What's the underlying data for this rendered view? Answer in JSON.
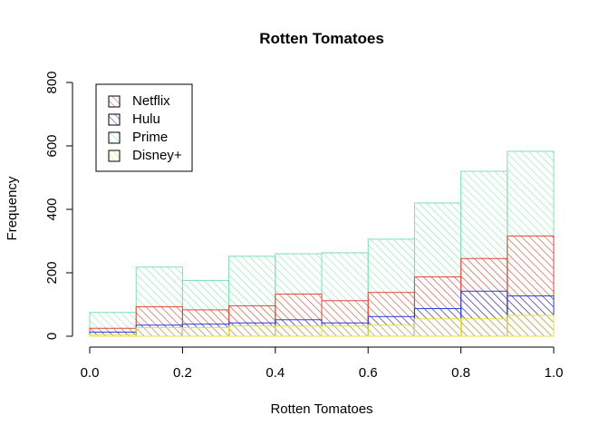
{
  "chart_data": {
    "type": "bar",
    "title": "Rotten Tomatoes",
    "xlabel": "Rotten Tomatoes",
    "ylabel": "Frequency",
    "xlim": [
      0,
      1
    ],
    "ylim": [
      0,
      800
    ],
    "x_ticks": [
      "0.0",
      "0.2",
      "0.4",
      "0.6",
      "0.8",
      "1.0"
    ],
    "y_ticks": [
      "0",
      "200",
      "400",
      "600",
      "800"
    ],
    "bins": [
      [
        0.0,
        0.1
      ],
      [
        0.1,
        0.2
      ],
      [
        0.2,
        0.3
      ],
      [
        0.3,
        0.4
      ],
      [
        0.4,
        0.5
      ],
      [
        0.5,
        0.6
      ],
      [
        0.6,
        0.7
      ],
      [
        0.7,
        0.8
      ],
      [
        0.8,
        0.9
      ],
      [
        0.9,
        1.0
      ]
    ],
    "legend_position": "top-left",
    "grid": false,
    "series": [
      {
        "name": "Prime",
        "color": "#7fdfb0",
        "values": [
          75,
          218,
          176,
          252,
          260,
          263,
          306,
          420,
          520,
          583
        ]
      },
      {
        "name": "Netflix",
        "color": "#e0463c",
        "values": [
          25,
          93,
          83,
          96,
          133,
          112,
          138,
          187,
          245,
          316
        ]
      },
      {
        "name": "Hulu",
        "color": "#2c3dd6",
        "values": [
          13,
          35,
          38,
          42,
          52,
          42,
          62,
          87,
          142,
          127
        ]
      },
      {
        "name": "Disney+",
        "color": "#e8e040",
        "values": [
          5,
          27,
          27,
          33,
          32,
          32,
          35,
          55,
          55,
          66
        ]
      }
    ],
    "legend": [
      "Netflix",
      "Hulu",
      "Prime",
      "Disney+"
    ]
  }
}
